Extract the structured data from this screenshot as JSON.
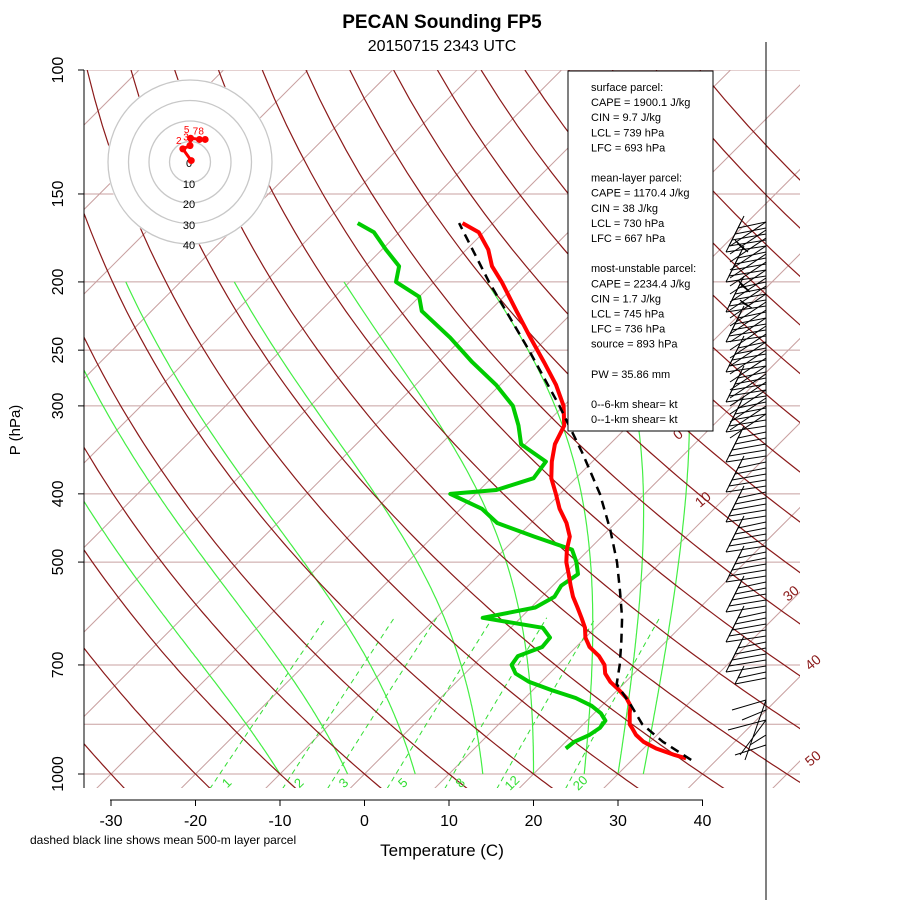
{
  "title": "PECAN Sounding FP5",
  "subtitle": "20150715 2343 UTC",
  "footnote": "dashed black line shows mean 500-m layer parcel",
  "colors": {
    "temperature": "#ff0000",
    "dewpoint": "#00cc00",
    "isotherm": "#c8a0a0",
    "isobar": "#c8a0a0",
    "dry_adiabat": "#8b1a1a",
    "mixing_ratio": "#33dd33",
    "parcel": "#000000",
    "hodo_ring": "#c8c8c8"
  },
  "stats_box": {
    "lines": [
      "surface parcel:",
      "CAPE = 1900.1 J/kg",
      "CIN = 9.7 J/kg",
      "LCL = 739 hPa",
      "LFC = 693 hPa",
      "",
      "mean-layer parcel:",
      "CAPE = 1170.4 J/kg",
      "CIN = 38 J/kg",
      "LCL = 730 hPa",
      "LFC = 667 hPa",
      "",
      "most-unstable parcel:",
      "CAPE = 2234.4 J/kg",
      "CIN = 1.7 J/kg",
      "LCL = 745 hPa",
      "LFC = 736 hPa",
      "source = 893 hPa",
      "",
      "PW =  35.86 mm",
      "",
      "0--6-km shear=  kt",
      "0--1-km shear=  kt"
    ]
  },
  "hodograph": {
    "ring_labels": [
      "0",
      "10",
      "20",
      "30",
      "40"
    ],
    "height_labels": [
      "2",
      "3",
      "5",
      "7",
      "8"
    ]
  },
  "chart_data": {
    "type": "skew-t",
    "xlabel": "Temperature (C)",
    "ylabel": "P (hPa)",
    "xlim": [
      -33,
      45
    ],
    "ylim_hpa": [
      1050,
      100
    ],
    "log_pressure": true,
    "x_ticks": [
      -30,
      -20,
      -10,
      0,
      10,
      20,
      30,
      40
    ],
    "y_ticks": [
      100,
      150,
      200,
      250,
      300,
      400,
      500,
      700,
      1000
    ],
    "isobars_hpa": [
      100,
      150,
      200,
      250,
      300,
      400,
      500,
      700,
      850,
      1000
    ],
    "dry_adiabats_c": [
      -30,
      -20,
      -10,
      0,
      10,
      20,
      30,
      40,
      50,
      60,
      70,
      80,
      90,
      100,
      110,
      120,
      130,
      140,
      150,
      160,
      170
    ],
    "dry_adiabat_labels": [
      "0",
      "10",
      "30",
      "40",
      "50"
    ],
    "mixing_ratio_labels": [
      "1",
      "2",
      "3",
      "5",
      "8",
      "12",
      "20"
    ],
    "temperature_profile": [
      {
        "p": 950,
        "t": 36.2
      },
      {
        "p": 940,
        "t": 34.5
      },
      {
        "p": 920,
        "t": 31.5
      },
      {
        "p": 900,
        "t": 29.2
      },
      {
        "p": 880,
        "t": 27.5
      },
      {
        "p": 860,
        "t": 26.2
      },
      {
        "p": 850,
        "t": 25.5
      },
      {
        "p": 820,
        "t": 24.2
      },
      {
        "p": 800,
        "t": 23.4
      },
      {
        "p": 780,
        "t": 22.0
      },
      {
        "p": 760,
        "t": 20.2
      },
      {
        "p": 740,
        "t": 18.2
      },
      {
        "p": 720,
        "t": 16.6
      },
      {
        "p": 700,
        "t": 15.5
      },
      {
        "p": 680,
        "t": 13.8
      },
      {
        "p": 660,
        "t": 11.6
      },
      {
        "p": 640,
        "t": 10.0
      },
      {
        "p": 620,
        "t": 8.8
      },
      {
        "p": 600,
        "t": 7.2
      },
      {
        "p": 580,
        "t": 5.5
      },
      {
        "p": 560,
        "t": 3.7
      },
      {
        "p": 540,
        "t": 2.1
      },
      {
        "p": 520,
        "t": 0.5
      },
      {
        "p": 500,
        "t": -1.2
      },
      {
        "p": 480,
        "t": -2.6
      },
      {
        "p": 460,
        "t": -3.8
      },
      {
        "p": 440,
        "t": -5.8
      },
      {
        "p": 420,
        "t": -8.3
      },
      {
        "p": 400,
        "t": -10.5
      },
      {
        "p": 380,
        "t": -12.9
      },
      {
        "p": 360,
        "t": -14.8
      },
      {
        "p": 340,
        "t": -16.5
      },
      {
        "p": 320,
        "t": -17.6
      },
      {
        "p": 300,
        "t": -20.0
      },
      {
        "p": 280,
        "t": -23.4
      },
      {
        "p": 260,
        "t": -27.5
      },
      {
        "p": 240,
        "t": -32.0
      },
      {
        "p": 220,
        "t": -36.8
      },
      {
        "p": 200,
        "t": -42.0
      },
      {
        "p": 190,
        "t": -45.0
      },
      {
        "p": 180,
        "t": -47.4
      },
      {
        "p": 170,
        "t": -50.6
      },
      {
        "p": 165,
        "t": -53.6
      }
    ],
    "dewpoint_profile": [
      {
        "p": 920,
        "t": 20.8
      },
      {
        "p": 900,
        "t": 21.0
      },
      {
        "p": 880,
        "t": 22.0
      },
      {
        "p": 860,
        "t": 22.4
      },
      {
        "p": 840,
        "t": 22.2
      },
      {
        "p": 820,
        "t": 20.8
      },
      {
        "p": 800,
        "t": 18.8
      },
      {
        "p": 780,
        "t": 16.0
      },
      {
        "p": 760,
        "t": 12.2
      },
      {
        "p": 740,
        "t": 8.6
      },
      {
        "p": 720,
        "t": 6.0
      },
      {
        "p": 700,
        "t": 4.5
      },
      {
        "p": 680,
        "t": 4.2
      },
      {
        "p": 660,
        "t": 6.0
      },
      {
        "p": 640,
        "t": 5.8
      },
      {
        "p": 620,
        "t": 3.8
      },
      {
        "p": 600,
        "t": -4.5
      },
      {
        "p": 590,
        "t": -2.0
      },
      {
        "p": 580,
        "t": 0.5
      },
      {
        "p": 560,
        "t": 1.5
      },
      {
        "p": 540,
        "t": 1.0
      },
      {
        "p": 520,
        "t": 1.6
      },
      {
        "p": 500,
        "t": 0.0
      },
      {
        "p": 480,
        "t": -2.0
      },
      {
        "p": 460,
        "t": -8.0
      },
      {
        "p": 440,
        "t": -14.0
      },
      {
        "p": 420,
        "t": -17.5
      },
      {
        "p": 400,
        "t": -23.0
      },
      {
        "p": 395,
        "t": -18.0
      },
      {
        "p": 380,
        "t": -15.0
      },
      {
        "p": 360,
        "t": -15.5
      },
      {
        "p": 340,
        "t": -20.5
      },
      {
        "p": 320,
        "t": -23.0
      },
      {
        "p": 300,
        "t": -26.0
      },
      {
        "p": 280,
        "t": -30.5
      },
      {
        "p": 260,
        "t": -36.0
      },
      {
        "p": 240,
        "t": -41.5
      },
      {
        "p": 220,
        "t": -48.0
      },
      {
        "p": 210,
        "t": -50.0
      },
      {
        "p": 200,
        "t": -54.5
      },
      {
        "p": 190,
        "t": -56.0
      },
      {
        "p": 180,
        "t": -59.5
      },
      {
        "p": 170,
        "t": -63.0
      },
      {
        "p": 165,
        "t": -66.0
      }
    ],
    "parcel_profile": [
      {
        "p": 955,
        "t": 37.0
      },
      {
        "p": 900,
        "t": 31.5
      },
      {
        "p": 850,
        "t": 27.0
      },
      {
        "p": 800,
        "t": 23.5
      },
      {
        "p": 745,
        "t": 19.2
      },
      {
        "p": 700,
        "t": 17.3
      },
      {
        "p": 650,
        "t": 14.8
      },
      {
        "p": 600,
        "t": 12.0
      },
      {
        "p": 550,
        "t": 8.6
      },
      {
        "p": 500,
        "t": 4.8
      },
      {
        "p": 450,
        "t": 0.2
      },
      {
        "p": 400,
        "t": -5.3
      },
      {
        "p": 350,
        "t": -12.2
      },
      {
        "p": 300,
        "t": -20.5
      },
      {
        "p": 250,
        "t": -30.7
      },
      {
        "p": 200,
        "t": -43.5
      },
      {
        "p": 165,
        "t": -54.0
      }
    ],
    "hodograph_points_kt": [
      {
        "label": "",
        "u": 0.6,
        "v": 0.7
      },
      {
        "label": "2",
        "u": -3.5,
        "v": 6.4
      },
      {
        "label": "3",
        "u": 0.0,
        "v": 8.0
      },
      {
        "label": "5",
        "u": 0.3,
        "v": 11.6
      },
      {
        "label": "7",
        "u": 4.6,
        "v": 11.0
      },
      {
        "label": "8",
        "u": 7.4,
        "v": 11.0
      }
    ]
  }
}
